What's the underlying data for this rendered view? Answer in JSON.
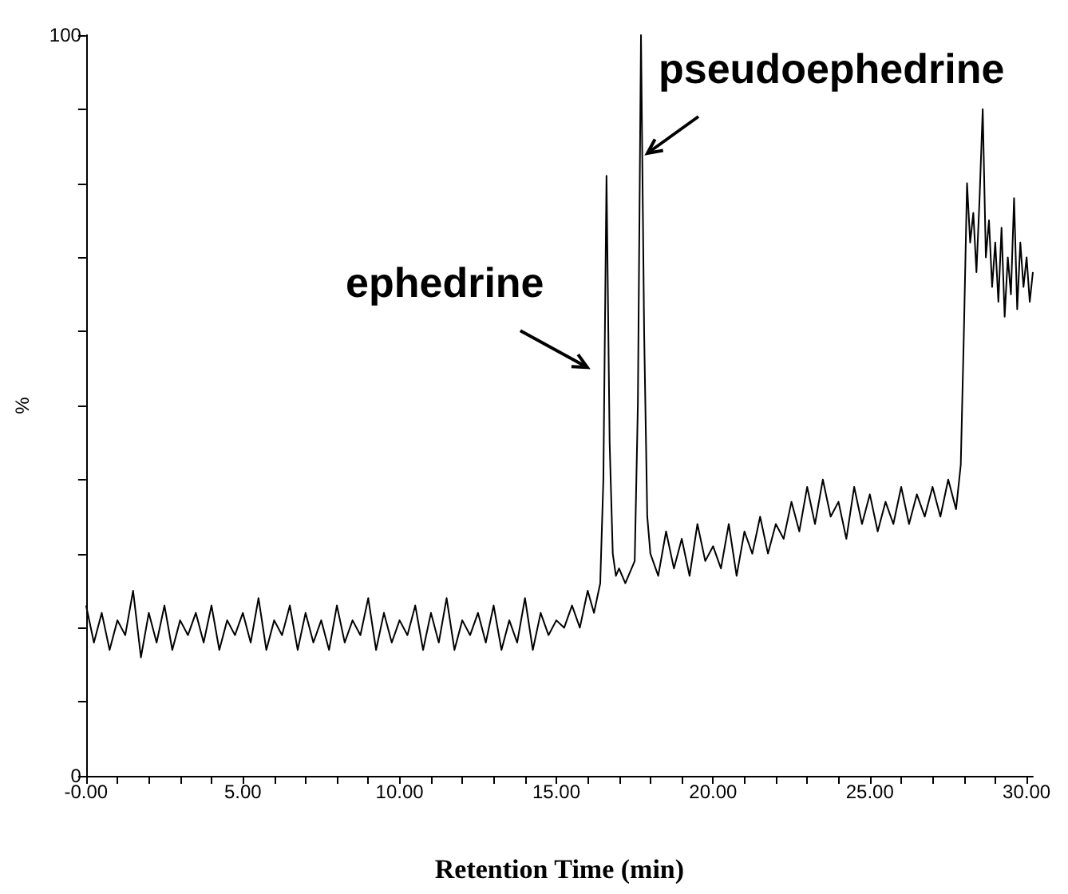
{
  "chart_data": {
    "type": "line",
    "xlabel": "Retention Time (min)",
    "ylabel": "%",
    "xlim": [
      0,
      30.2
    ],
    "ylim": [
      0,
      100
    ],
    "xticks": [
      {
        "value": 0,
        "label": "-0.00"
      },
      {
        "value": 1,
        "label": null
      },
      {
        "value": 2,
        "label": null
      },
      {
        "value": 3,
        "label": null
      },
      {
        "value": 4,
        "label": null
      },
      {
        "value": 5,
        "label": "5.00"
      },
      {
        "value": 6,
        "label": null
      },
      {
        "value": 7,
        "label": null
      },
      {
        "value": 8,
        "label": null
      },
      {
        "value": 9,
        "label": null
      },
      {
        "value": 10,
        "label": "10.00"
      },
      {
        "value": 11,
        "label": null
      },
      {
        "value": 12,
        "label": null
      },
      {
        "value": 13,
        "label": null
      },
      {
        "value": 14,
        "label": null
      },
      {
        "value": 15,
        "label": "15.00"
      },
      {
        "value": 16,
        "label": null
      },
      {
        "value": 17,
        "label": null
      },
      {
        "value": 18,
        "label": null
      },
      {
        "value": 19,
        "label": null
      },
      {
        "value": 20,
        "label": "20.00"
      },
      {
        "value": 21,
        "label": null
      },
      {
        "value": 22,
        "label": null
      },
      {
        "value": 23,
        "label": null
      },
      {
        "value": 24,
        "label": null
      },
      {
        "value": 25,
        "label": "25.00"
      },
      {
        "value": 26,
        "label": null
      },
      {
        "value": 27,
        "label": null
      },
      {
        "value": 28,
        "label": null
      },
      {
        "value": 29,
        "label": null
      },
      {
        "value": 30,
        "label": "30.00"
      }
    ],
    "yticks": [
      0,
      {
        "value": 10,
        "label": null
      },
      {
        "value": 20,
        "label": null
      },
      {
        "value": 30,
        "label": null
      },
      {
        "value": 40,
        "label": null
      },
      {
        "value": 50,
        "label": null
      },
      {
        "value": 60,
        "label": null
      },
      {
        "value": 70,
        "label": null
      },
      {
        "value": 80,
        "label": null
      },
      {
        "value": 90,
        "label": null
      },
      100
    ],
    "grid": false,
    "marker": "none",
    "line_style": "solid",
    "annotations": [
      {
        "text": "ephedrine",
        "x": 16.6,
        "y": 81
      },
      {
        "text": "pseudoephedrine",
        "x": 17.7,
        "y": 100
      }
    ],
    "series": [
      {
        "color": "#000000",
        "x": [
          0,
          0.25,
          0.5,
          0.75,
          1,
          1.25,
          1.5,
          1.75,
          2,
          2.25,
          2.5,
          2.75,
          3,
          3.25,
          3.5,
          3.75,
          4,
          4.25,
          4.5,
          4.75,
          5,
          5.25,
          5.5,
          5.75,
          6,
          6.25,
          6.5,
          6.75,
          7,
          7.25,
          7.5,
          7.75,
          8,
          8.25,
          8.5,
          8.75,
          9,
          9.25,
          9.5,
          9.75,
          10,
          10.25,
          10.5,
          10.75,
          11,
          11.25,
          11.5,
          11.75,
          12,
          12.25,
          12.5,
          12.75,
          13,
          13.25,
          13.5,
          13.75,
          14,
          14.25,
          14.5,
          14.75,
          15,
          15.25,
          15.5,
          15.75,
          16,
          16.2,
          16.4,
          16.5,
          16.6,
          16.7,
          16.8,
          16.9,
          17.0,
          17.2,
          17.4,
          17.5,
          17.6,
          17.7,
          17.8,
          17.9,
          18.0,
          18.25,
          18.5,
          18.75,
          19,
          19.25,
          19.5,
          19.75,
          20,
          20.25,
          20.5,
          20.75,
          21,
          21.25,
          21.5,
          21.75,
          22,
          22.25,
          22.5,
          22.75,
          23,
          23.25,
          23.5,
          23.75,
          24,
          24.25,
          24.5,
          24.75,
          25,
          25.25,
          25.5,
          25.75,
          26,
          26.25,
          26.5,
          26.75,
          27,
          27.25,
          27.5,
          27.75,
          27.9,
          28.0,
          28.1,
          28.2,
          28.3,
          28.4,
          28.5,
          28.6,
          28.7,
          28.8,
          28.9,
          29.0,
          29.1,
          29.2,
          29.3,
          29.4,
          29.5,
          29.6,
          29.7,
          29.8,
          29.9,
          30.0,
          30.1,
          30.2
        ],
        "values": [
          23,
          18,
          22,
          17,
          21,
          19,
          25,
          16,
          22,
          18,
          23,
          17,
          21,
          19,
          22,
          18,
          23,
          17,
          21,
          19,
          22,
          18,
          24,
          17,
          21,
          19,
          23,
          17,
          22,
          18,
          21,
          17,
          23,
          18,
          21,
          19,
          24,
          17,
          22,
          18,
          21,
          19,
          23,
          17,
          22,
          18,
          24,
          17,
          21,
          19,
          22,
          18,
          23,
          17,
          21,
          18,
          24,
          17,
          22,
          19,
          21,
          20,
          23,
          20,
          25,
          22,
          26,
          40,
          81,
          45,
          30,
          27,
          28,
          26,
          28,
          29,
          50,
          100,
          60,
          35,
          30,
          27,
          33,
          28,
          32,
          27,
          34,
          29,
          31,
          28,
          34,
          27,
          33,
          30,
          35,
          30,
          34,
          32,
          37,
          33,
          39,
          34,
          40,
          35,
          37,
          32,
          39,
          34,
          38,
          33,
          37,
          34,
          39,
          34,
          38,
          35,
          39,
          35,
          40,
          36,
          42,
          60,
          80,
          72,
          76,
          68,
          78,
          90,
          70,
          75,
          66,
          72,
          64,
          74,
          62,
          70,
          65,
          78,
          63,
          72,
          66,
          70,
          64,
          68
        ]
      }
    ]
  }
}
